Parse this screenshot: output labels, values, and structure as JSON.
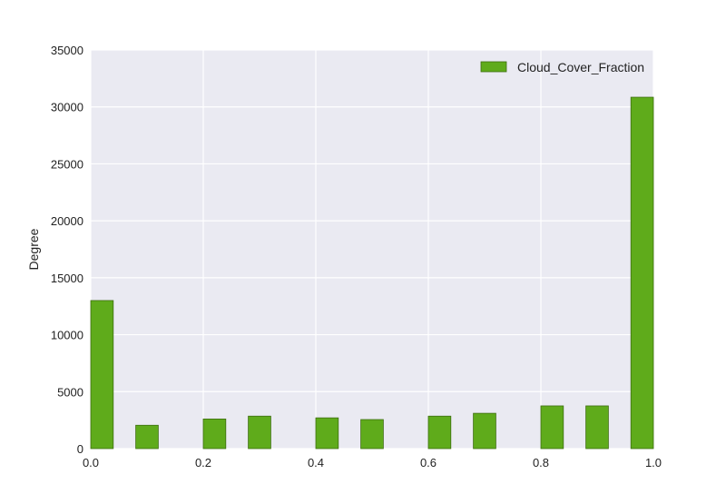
{
  "chart_data": {
    "type": "bar",
    "title": "",
    "xlabel": "",
    "ylabel": "Degree",
    "xlim": [
      0.0,
      1.0
    ],
    "ylim": [
      0,
      35000
    ],
    "grid": true,
    "legend_position": "top-right",
    "x_ticks": [
      "0.0",
      "0.2",
      "0.4",
      "0.6",
      "0.8",
      "1.0"
    ],
    "y_ticks": [
      "0",
      "5000",
      "10000",
      "15000",
      "20000",
      "25000",
      "30000",
      "35000"
    ],
    "bin_width": 0.04,
    "series": [
      {
        "name": "Cloud_Cover_Fraction",
        "color": "#5fab1b",
        "edge_color": "#3d6e10",
        "bins": [
          {
            "x": 0.0,
            "value": 13000
          },
          {
            "x": 0.08,
            "value": 2050
          },
          {
            "x": 0.2,
            "value": 2600
          },
          {
            "x": 0.28,
            "value": 2850
          },
          {
            "x": 0.4,
            "value": 2700
          },
          {
            "x": 0.48,
            "value": 2550
          },
          {
            "x": 0.6,
            "value": 2850
          },
          {
            "x": 0.68,
            "value": 3100
          },
          {
            "x": 0.8,
            "value": 3750
          },
          {
            "x": 0.88,
            "value": 3750
          },
          {
            "x": 0.96,
            "value": 30850
          }
        ]
      }
    ],
    "colors": {
      "plot_background": "#eaeaf2",
      "grid": "#ffffff"
    }
  }
}
